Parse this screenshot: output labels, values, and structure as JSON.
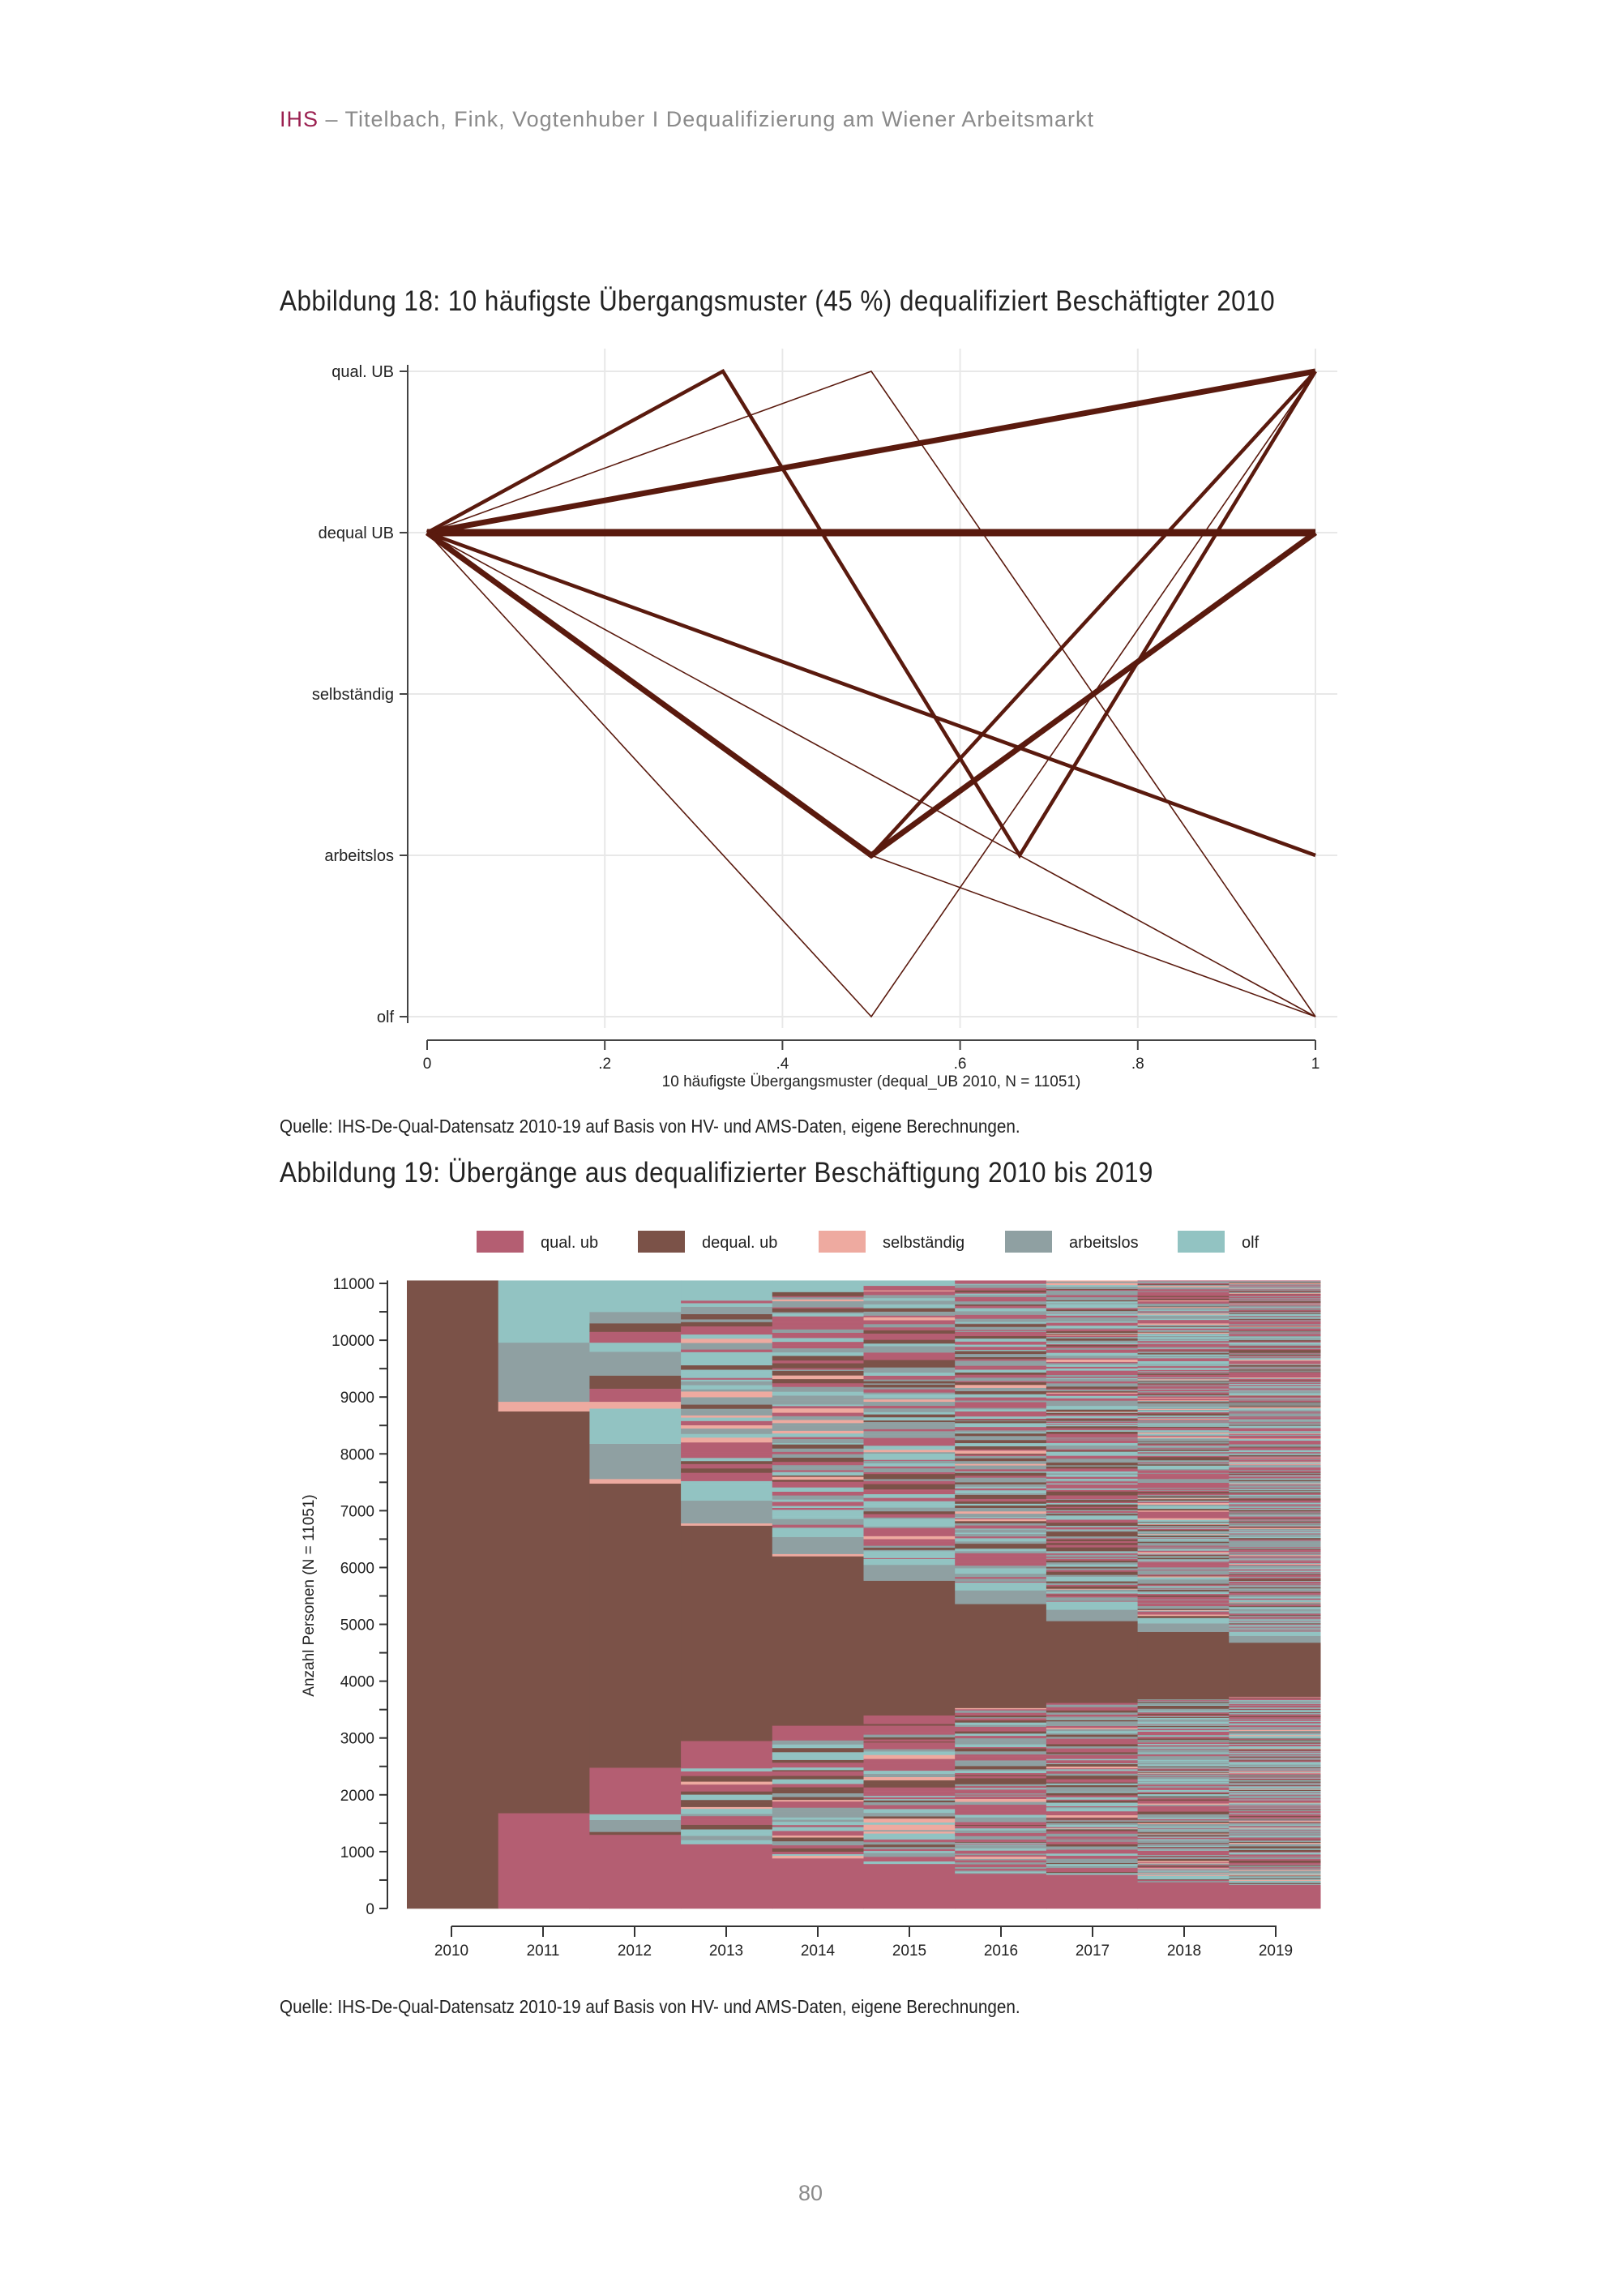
{
  "header": {
    "brand": "IHS",
    "text": " – Titelbach, Fink, Vogtenhuber I Dequalifizierung am Wiener Arbeitsmarkt"
  },
  "figure18": {
    "title": "Abbildung 18: 10 häufigste Übergangsmuster (45 %) dequalifiziert Beschäftigter 2010",
    "source": "Quelle: IHS-De-Qual-Datensatz 2010-19 auf Basis von HV- und AMS-Daten, eigene Berechnungen."
  },
  "figure19": {
    "title": "Abbildung 19: Übergänge aus dequalifizierter Beschäftigung 2010 bis 2019",
    "source": "Quelle: IHS-De-Qual-Datensatz 2010-19 auf Basis von HV- und AMS-Daten, eigene Berechnungen."
  },
  "page_number": "80",
  "chart_data": [
    {
      "type": "line",
      "xlabel": "10 häufigste Übergangsmuster (dequal_UB  2010, N = 11051)",
      "ylabel": "",
      "xlim": [
        0,
        1
      ],
      "xticks": [
        "0",
        ".2",
        ".4",
        ".6",
        ".8",
        "1"
      ],
      "ycategories": [
        "qual. UB",
        "dequal UB",
        "selbständig",
        "arbeitslos",
        "olf"
      ],
      "grid": true,
      "line_color": "#5a1a0e",
      "series": [
        {
          "points": [
            [
              0,
              "dequal UB"
            ],
            [
              1,
              "dequal UB"
            ]
          ],
          "weight": "very thick"
        },
        {
          "points": [
            [
              0,
              "dequal UB"
            ],
            [
              1,
              "qual. UB"
            ]
          ],
          "weight": "thick"
        },
        {
          "points": [
            [
              0,
              "dequal UB"
            ],
            [
              0.5,
              "arbeitslos"
            ],
            [
              1,
              "dequal UB"
            ]
          ],
          "weight": "thick"
        },
        {
          "points": [
            [
              0,
              "dequal UB"
            ],
            [
              0.5,
              "arbeitslos"
            ],
            [
              1,
              "qual. UB"
            ]
          ],
          "weight": "medium"
        },
        {
          "points": [
            [
              0,
              "dequal UB"
            ],
            [
              0.333,
              "qual. UB"
            ],
            [
              0.667,
              "arbeitslos"
            ],
            [
              1,
              "qual. UB"
            ]
          ],
          "weight": "medium"
        },
        {
          "points": [
            [
              0,
              "dequal UB"
            ],
            [
              1,
              "arbeitslos"
            ]
          ],
          "weight": "medium"
        },
        {
          "points": [
            [
              0,
              "dequal UB"
            ],
            [
              0.5,
              "qual. UB"
            ],
            [
              1,
              "olf"
            ]
          ],
          "weight": "thin"
        },
        {
          "points": [
            [
              0,
              "dequal UB"
            ],
            [
              0.5,
              "olf"
            ],
            [
              1,
              "qual. UB"
            ]
          ],
          "weight": "thin"
        },
        {
          "points": [
            [
              0,
              "dequal UB"
            ],
            [
              0.5,
              "arbeitslos"
            ],
            [
              1,
              "olf"
            ]
          ],
          "weight": "thin"
        },
        {
          "points": [
            [
              0,
              "dequal UB"
            ],
            [
              1,
              "olf"
            ]
          ],
          "weight": "thin"
        }
      ]
    },
    {
      "type": "area",
      "subtype": "sequence index plot",
      "ylabel": "Anzahl Personen (N = 11051)",
      "xlabel": "",
      "ylim": [
        0,
        11051
      ],
      "yticks": [
        0,
        1000,
        2000,
        3000,
        4000,
        5000,
        6000,
        7000,
        8000,
        9000,
        10000,
        11000
      ],
      "categories": [
        "2010",
        "2011",
        "2012",
        "2013",
        "2014",
        "2015",
        "2016",
        "2017",
        "2018",
        "2019"
      ],
      "legend_position": "top",
      "legend": [
        {
          "label": "qual. ub",
          "color": "#b45e72"
        },
        {
          "label": "dequal. ub",
          "color": "#7b5248"
        },
        {
          "label": "selbständig",
          "color": "#eeaaa0"
        },
        {
          "label": "arbeitslos",
          "color": "#8fa0a2"
        },
        {
          "label": "olf",
          "color": "#92c3c2"
        }
      ],
      "blocks": [
        [
          [
            "dequal. ub",
            0,
            11051
          ]
        ],
        [
          [
            "qual. ub",
            0,
            1680
          ],
          [
            "dequal. ub",
            1680,
            8750
          ],
          [
            "selbständig",
            8750,
            8920
          ],
          [
            "arbeitslos",
            8920,
            9960
          ],
          [
            "olf",
            9960,
            11051
          ]
        ],
        [
          [
            "qual. ub",
            0,
            1300
          ],
          [
            "dequal. ub",
            1300,
            1350
          ],
          [
            "arbeitslos",
            1350,
            1560
          ],
          [
            "olf",
            1560,
            1660
          ],
          [
            "qual. ub",
            1660,
            2480
          ],
          [
            "dequal. ub",
            2480,
            7480
          ],
          [
            "selbständig",
            7480,
            7560
          ],
          [
            "arbeitslos",
            7560,
            8180
          ],
          [
            "olf",
            8180,
            8800
          ],
          [
            "selbständig",
            8800,
            8920
          ],
          [
            "qual. ub",
            8920,
            9150
          ],
          [
            "dequal. ub",
            9150,
            9380
          ],
          [
            "arbeitslos",
            9380,
            9800
          ],
          [
            "olf",
            9800,
            9960
          ],
          [
            "qual. ub",
            9960,
            10150
          ],
          [
            "dequal. ub",
            10150,
            10300
          ],
          [
            "arbeitslos",
            10300,
            10500
          ],
          [
            "olf",
            10500,
            11051
          ]
        ],
        [
          [
            "qual. ub",
            0,
            1060
          ],
          [
            "qual. ub",
            2480,
            2950
          ],
          [
            "dequal. ub",
            2950,
            6740
          ],
          [
            "selbständig",
            6740,
            6780
          ],
          [
            "arbeitslos",
            6780,
            7180
          ],
          [
            "olf",
            7180,
            7460
          ],
          [
            "olf",
            10700,
            11051
          ]
        ],
        [
          [
            "qual. ub",
            0,
            880
          ],
          [
            "qual. ub",
            2960,
            3220
          ],
          [
            "dequal. ub",
            3220,
            6200
          ],
          [
            "selbständig",
            6200,
            6240
          ],
          [
            "arbeitslos",
            6240,
            6540
          ],
          [
            "olf",
            6540,
            6700
          ],
          [
            "olf",
            10850,
            11051
          ]
        ],
        [
          [
            "qual. ub",
            0,
            700
          ],
          [
            "qual. ub",
            3250,
            3400
          ],
          [
            "dequal. ub",
            3400,
            5770
          ],
          [
            "arbeitslos",
            5770,
            6050
          ],
          [
            "olf",
            6050,
            6150
          ],
          [
            "olf",
            10960,
            11051
          ]
        ],
        [
          [
            "qual. ub",
            0,
            610
          ],
          [
            "dequal. ub",
            3530,
            5360
          ],
          [
            "arbeitslos",
            5360,
            5600
          ],
          [
            "olf",
            5600,
            5700
          ]
        ],
        [
          [
            "qual. ub",
            0,
            530
          ],
          [
            "dequal. ub",
            3620,
            5060
          ],
          [
            "arbeitslos",
            5060,
            5260
          ],
          [
            "olf",
            5260,
            5350
          ]
        ],
        [
          [
            "qual. ub",
            0,
            460
          ],
          [
            "dequal. ub",
            3680,
            4870
          ],
          [
            "arbeitslos",
            4870,
            5020
          ],
          [
            "olf",
            5020,
            5110
          ]
        ],
        [
          [
            "qual. ub",
            0,
            400
          ],
          [
            "dequal. ub",
            3730,
            4680
          ],
          [
            "arbeitslos",
            4680,
            4800
          ],
          [
            "olf",
            4800,
            4870
          ]
        ]
      ]
    }
  ]
}
